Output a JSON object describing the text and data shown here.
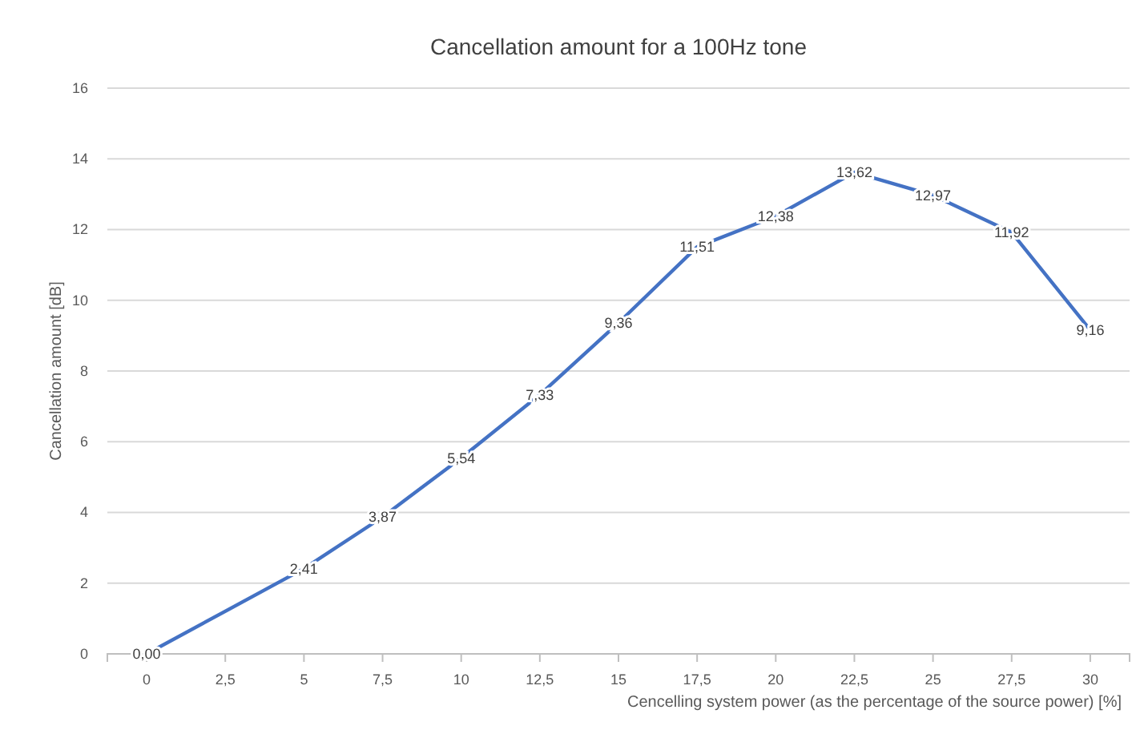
{
  "chart_data": {
    "type": "line",
    "title": "Cancellation amount for a 100Hz tone",
    "xlabel": "Cencelling system power (as the percentage of the source power) [%]",
    "ylabel": "Cancellation amount [dB]",
    "x": [
      0,
      5,
      7.5,
      10,
      12.5,
      15,
      17.5,
      20,
      22.5,
      25,
      27.5,
      30
    ],
    "series": [
      {
        "color": "#4472c4",
        "values": [
          0,
          2.41,
          3.87,
          5.54,
          7.33,
          9.36,
          11.51,
          12.38,
          13.62,
          12.97,
          11.92,
          9.16
        ],
        "value_labels": [
          "0,00",
          "2,41",
          "3,87",
          "5,54",
          "7,33",
          "9,36",
          "11,51",
          "12,38",
          "13,62",
          "12,97",
          "11,92",
          "9,16"
        ]
      }
    ],
    "xlim": [
      -1.25,
      31.25
    ],
    "xticks": [
      0,
      {
        "value": 2.5,
        "label": "2,5"
      },
      5,
      {
        "value": 7.5,
        "label": "7,5"
      },
      10,
      {
        "value": 12.5,
        "label": "12,5"
      },
      15,
      {
        "value": 17.5,
        "label": "17,5"
      },
      20,
      {
        "value": 22.5,
        "label": "22,5"
      },
      25,
      {
        "value": 27.5,
        "label": "27,5"
      },
      30
    ],
    "ylim": [
      0,
      16
    ],
    "yticks": [
      0,
      2,
      4,
      6,
      8,
      10,
      12,
      14,
      16
    ],
    "grid": "y",
    "marker": "none",
    "line_style": "solid"
  }
}
